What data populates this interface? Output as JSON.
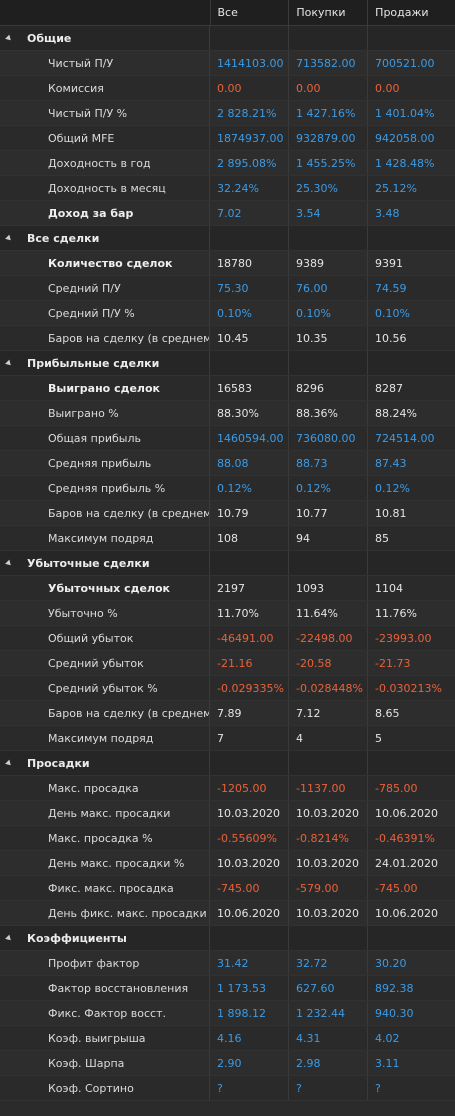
{
  "columns": [
    "Все",
    "Покупки",
    "Продажи"
  ],
  "sections": [
    {
      "title": "Общие",
      "rows": [
        {
          "label": "Чистый П/У",
          "bold": false,
          "values": [
            "1414103.00",
            "713582.00",
            "700521.00"
          ],
          "color": "blue"
        },
        {
          "label": "Комиссия",
          "bold": false,
          "values": [
            "0.00",
            "0.00",
            "0.00"
          ],
          "color": "red"
        },
        {
          "label": "Чистый П/У %",
          "bold": false,
          "values": [
            "2 828.21%",
            "1 427.16%",
            "1 401.04%"
          ],
          "color": "blue"
        },
        {
          "label": "Общий MFE",
          "bold": false,
          "values": [
            "1874937.00",
            "932879.00",
            "942058.00"
          ],
          "color": "blue"
        },
        {
          "label": "Доходность в год",
          "bold": false,
          "values": [
            "2 895.08%",
            "1 455.25%",
            "1 428.48%"
          ],
          "color": "blue"
        },
        {
          "label": "Доходность в месяц",
          "bold": false,
          "values": [
            "32.24%",
            "25.30%",
            "25.12%"
          ],
          "color": "blue"
        },
        {
          "label": "Доход за бар",
          "bold": true,
          "values": [
            "7.02",
            "3.54",
            "3.48"
          ],
          "color": "blue"
        }
      ]
    },
    {
      "title": "Все сделки",
      "rows": [
        {
          "label": "Количество сделок",
          "bold": true,
          "values": [
            "18780",
            "9389",
            "9391"
          ],
          "color": "white"
        },
        {
          "label": "Средний П/У",
          "bold": false,
          "values": [
            "75.30",
            "76.00",
            "74.59"
          ],
          "color": "blue"
        },
        {
          "label": "Средний П/У %",
          "bold": false,
          "values": [
            "0.10%",
            "0.10%",
            "0.10%"
          ],
          "color": "blue"
        },
        {
          "label": "Баров на сделку (в среднем)",
          "bold": false,
          "values": [
            "10.45",
            "10.35",
            "10.56"
          ],
          "color": "white"
        }
      ]
    },
    {
      "title": "Прибыльные сделки",
      "rows": [
        {
          "label": "Выиграно сделок",
          "bold": true,
          "values": [
            "16583",
            "8296",
            "8287"
          ],
          "color": "white"
        },
        {
          "label": "Выиграно %",
          "bold": false,
          "values": [
            "88.30%",
            "88.36%",
            "88.24%"
          ],
          "color": "white"
        },
        {
          "label": "Общая прибыль",
          "bold": false,
          "values": [
            "1460594.00",
            "736080.00",
            "724514.00"
          ],
          "color": "blue"
        },
        {
          "label": "Средняя прибыль",
          "bold": false,
          "values": [
            "88.08",
            "88.73",
            "87.43"
          ],
          "color": "blue"
        },
        {
          "label": "Средняя прибыль %",
          "bold": false,
          "values": [
            "0.12%",
            "0.12%",
            "0.12%"
          ],
          "color": "blue"
        },
        {
          "label": "Баров на сделку (в среднем)",
          "bold": false,
          "values": [
            "10.79",
            "10.77",
            "10.81"
          ],
          "color": "white"
        },
        {
          "label": "Максимум подряд",
          "bold": false,
          "values": [
            "108",
            "94",
            "85"
          ],
          "color": "white"
        }
      ]
    },
    {
      "title": "Убыточные сделки",
      "rows": [
        {
          "label": "Убыточных сделок",
          "bold": true,
          "values": [
            "2197",
            "1093",
            "1104"
          ],
          "color": "white"
        },
        {
          "label": "Убыточно %",
          "bold": false,
          "values": [
            "11.70%",
            "11.64%",
            "11.76%"
          ],
          "color": "white"
        },
        {
          "label": "Общий убыток",
          "bold": false,
          "values": [
            "-46491.00",
            "-22498.00",
            "-23993.00"
          ],
          "color": "red"
        },
        {
          "label": "Средний убыток",
          "bold": false,
          "values": [
            "-21.16",
            "-20.58",
            "-21.73"
          ],
          "color": "red"
        },
        {
          "label": "Средний убыток %",
          "bold": false,
          "values": [
            "-0.029335%",
            "-0.028448%",
            "-0.030213%"
          ],
          "color": "red"
        },
        {
          "label": "Баров на сделку (в среднем)",
          "bold": false,
          "values": [
            "7.89",
            "7.12",
            "8.65"
          ],
          "color": "white"
        },
        {
          "label": "Максимум подряд",
          "bold": false,
          "values": [
            "7",
            "4",
            "5"
          ],
          "color": "white"
        }
      ]
    },
    {
      "title": "Просадки",
      "rows": [
        {
          "label": "Макс. просадка",
          "bold": false,
          "values": [
            "-1205.00",
            "-1137.00",
            "-785.00"
          ],
          "color": "red"
        },
        {
          "label": "День макс. просадки",
          "bold": false,
          "values": [
            "10.03.2020",
            "10.03.2020",
            "10.06.2020"
          ],
          "color": "white"
        },
        {
          "label": "Макс. просадка %",
          "bold": false,
          "values": [
            "-0.55609%",
            "-0.8214%",
            "-0.46391%"
          ],
          "color": "red"
        },
        {
          "label": "День макс. просадки %",
          "bold": false,
          "values": [
            "10.03.2020",
            "10.03.2020",
            "24.01.2020"
          ],
          "color": "white"
        },
        {
          "label": "Фикс. макс. просадка",
          "bold": false,
          "values": [
            "-745.00",
            "-579.00",
            "-745.00"
          ],
          "color": "red"
        },
        {
          "label": "День фикс. макс. просадки",
          "bold": false,
          "values": [
            "10.06.2020",
            "10.03.2020",
            "10.06.2020"
          ],
          "color": "white"
        }
      ]
    },
    {
      "title": "Коэффициенты",
      "rows": [
        {
          "label": "Профит фактор",
          "bold": false,
          "values": [
            "31.42",
            "32.72",
            "30.20"
          ],
          "color": "blue"
        },
        {
          "label": "Фактор восстановления",
          "bold": false,
          "values": [
            "1 173.53",
            "627.60",
            "892.38"
          ],
          "color": "blue"
        },
        {
          "label": "Фикс. Фактор восст.",
          "bold": false,
          "values": [
            "1 898.12",
            "1 232.44",
            "940.30"
          ],
          "color": "blue"
        },
        {
          "label": "Коэф. выигрыша",
          "bold": false,
          "values": [
            "4.16",
            "4.31",
            "4.02"
          ],
          "color": "blue"
        },
        {
          "label": "Коэф. Шарпа",
          "bold": false,
          "values": [
            "2.90",
            "2.98",
            "3.11"
          ],
          "color": "blue"
        },
        {
          "label": "Коэф. Сортино",
          "bold": false,
          "values": [
            "?",
            "?",
            "?"
          ],
          "color": "blue"
        }
      ]
    }
  ],
  "colors": {
    "blue": "#3b9be6",
    "red": "#e8623a",
    "white": "#e4e4e4",
    "background": "#2b2b2b"
  },
  "icons": {
    "section_toggle": "collapse-triangle-icon"
  }
}
